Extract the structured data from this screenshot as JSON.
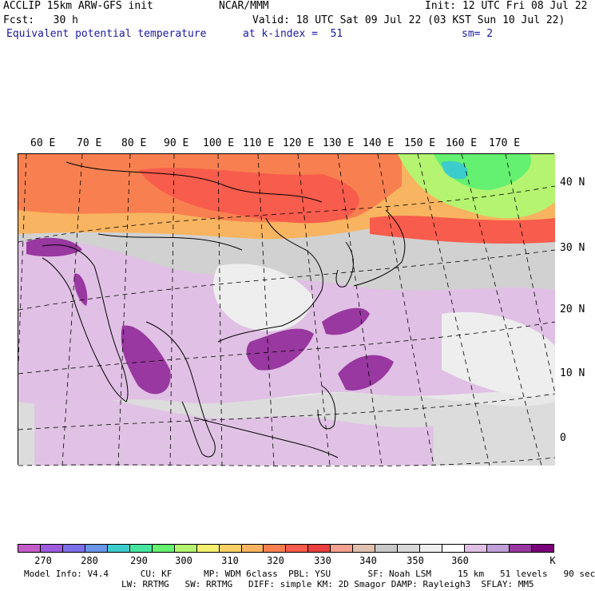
{
  "header": {
    "model_title": "ACCLIP 15km ARW-GFS init",
    "org": "NCAR/MMM",
    "init": "Init: 12 UTC Fri 08 Jul 22",
    "fcst": "Fcst:   30 h",
    "valid": "Valid: 18 UTC Sat 09 Jul 22 (03 KST Sun 10 Jul 22)",
    "field": "Equivalent potential temperature",
    "level": "at k-index =  51",
    "smooth": "sm= 2"
  },
  "map": {
    "lon_labels": [
      "60 E",
      "70 E",
      "80 E",
      "90 E",
      "100 E",
      "110 E",
      "120 E",
      "130 E",
      "140 E",
      "150 E",
      "160 E",
      "170 E"
    ],
    "lat_labels": [
      "40 N",
      "30 N",
      "20 N",
      "10 N",
      "0"
    ]
  },
  "colorbar": {
    "colors": [
      "#c45cc8",
      "#9d5ce0",
      "#7c70ea",
      "#6a95e8",
      "#3ccccc",
      "#46e6a0",
      "#64f070",
      "#b4f470",
      "#f4f070",
      "#f8d064",
      "#f8b460",
      "#f88050",
      "#f85c4c",
      "#e84040",
      "#f4a090",
      "#e0c0b0",
      "#c8c8c8",
      "#d8d8d8",
      "#eeeeee",
      "#ffffff",
      "#e0c0e4",
      "#c0a0d8",
      "#9838a0",
      "#780078"
    ],
    "ticks": [
      "270",
      "280",
      "290",
      "300",
      "310",
      "320",
      "330",
      "340",
      "350",
      "360",
      "K"
    ],
    "tick_values": [
      270,
      280,
      290,
      300,
      310,
      320,
      330,
      340,
      350,
      360
    ]
  },
  "footer": {
    "line1": "Model Info: V4.4      CU: KF      MP: WDM 6class  PBL: YSU       SF: Noah LSM     15 km   51 levels   90 sec",
    "line2": "LW: RRTMG   SW: RRTMG   DIFF: simple KM: 2D Smagor DAMP: Rayleigh3  SFLAY: MM5"
  }
}
